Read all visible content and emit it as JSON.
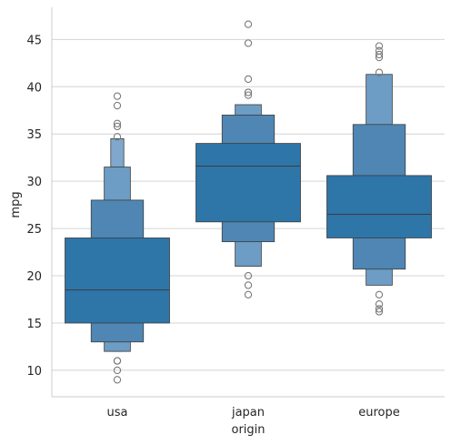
{
  "chart_data": {
    "type": "boxen",
    "xlabel": "origin",
    "ylabel": "mpg",
    "categories": [
      "usa",
      "japan",
      "europe"
    ],
    "ylim": [
      7.2,
      48.4
    ],
    "yticks": [
      10,
      15,
      20,
      25,
      30,
      35,
      40,
      45
    ],
    "grid": "horizontal",
    "colors": {
      "box": "#2e75a8",
      "level_light": "#4f86b3",
      "level_lighter": "#6d9cc4",
      "level_lightest": "#7fa8cc",
      "edge": "#3c3c3c",
      "outlier": "#7a7a7a",
      "grid": "#d4d4d4",
      "axis": "#cccccc"
    },
    "groups": [
      {
        "name": "usa",
        "median": 18.5,
        "levels": [
          {
            "low": 15.0,
            "high": 24.0
          },
          {
            "low": 13.0,
            "high": 28.0
          },
          {
            "low": 12.0,
            "high": 31.5
          },
          {
            "low": 12.0,
            "high": 34.5
          }
        ],
        "outliers": [
          39.0,
          38.0,
          36.1,
          35.8,
          34.7,
          11.0,
          11.0,
          10.0,
          9.0
        ]
      },
      {
        "name": "japan",
        "median": 31.6,
        "levels": [
          {
            "low": 25.7,
            "high": 34.0
          },
          {
            "low": 23.6,
            "high": 37.0
          },
          {
            "low": 21.0,
            "high": 38.1
          }
        ],
        "outliers": [
          46.6,
          44.6,
          40.8,
          39.4,
          39.1,
          20.0,
          19.0,
          18.0
        ]
      },
      {
        "name": "europe",
        "median": 26.5,
        "levels": [
          {
            "low": 24.0,
            "high": 30.6
          },
          {
            "low": 20.7,
            "high": 36.0
          },
          {
            "low": 19.0,
            "high": 41.3
          }
        ],
        "outliers": [
          44.3,
          43.8,
          43.4,
          43.1,
          41.5,
          18.0,
          17.0,
          16.5,
          16.2
        ]
      }
    ]
  }
}
